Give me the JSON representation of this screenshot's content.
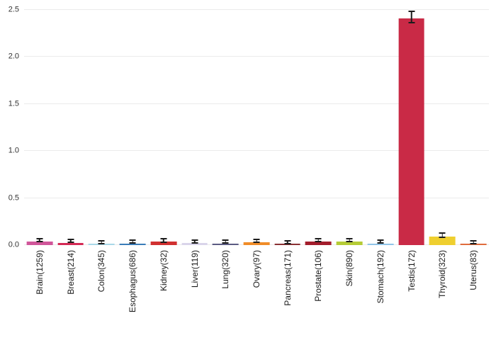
{
  "chart_data": {
    "type": "bar",
    "title": "",
    "xlabel": "",
    "ylabel": "",
    "ylim": [
      0,
      2.5
    ],
    "yticks": [
      0,
      0.5,
      1.0,
      1.5,
      2.0,
      2.5
    ],
    "ytick_labels": [
      "0.0",
      "0.5",
      "1.0",
      "1.5",
      "2.0",
      "2.5"
    ],
    "grid": true,
    "legend_position": "none",
    "error_bars": true,
    "categories": [
      "Brain(1259)",
      "Breast(214)",
      "Colon(345)",
      "Esophagus(686)",
      "Kidney(32)",
      "Liver(119)",
      "Lung(320)",
      "Ovary(97)",
      "Pancreas(171)",
      "Prostate(106)",
      "Skin(890)",
      "Stomach(192)",
      "Testis(172)",
      "Thyroid(323)",
      "Uterus(83)"
    ],
    "values": [
      0.035,
      0.025,
      0.012,
      0.018,
      0.035,
      0.022,
      0.018,
      0.03,
      0.012,
      0.035,
      0.035,
      0.018,
      2.41,
      0.09,
      0.015
    ],
    "errors": [
      0.006,
      0.005,
      0.003,
      0.003,
      0.012,
      0.006,
      0.004,
      0.008,
      0.004,
      0.008,
      0.006,
      0.004,
      0.055,
      0.012,
      0.005
    ],
    "bar_colors": [
      "#D0569A",
      "#D42A55",
      "#A8D8E8",
      "#3A7CB8",
      "#D03030",
      "#D9D4EA",
      "#5B5B82",
      "#F08C28",
      "#8A3033",
      "#A31D2C",
      "#B5CC36",
      "#8FC4E8",
      "#C92A46",
      "#EFCF2F",
      "#E06C3C"
    ],
    "errorbar_color": "#1c1c1c",
    "gridline_color": "#ebebeb",
    "background_color": "#ffffff"
  }
}
